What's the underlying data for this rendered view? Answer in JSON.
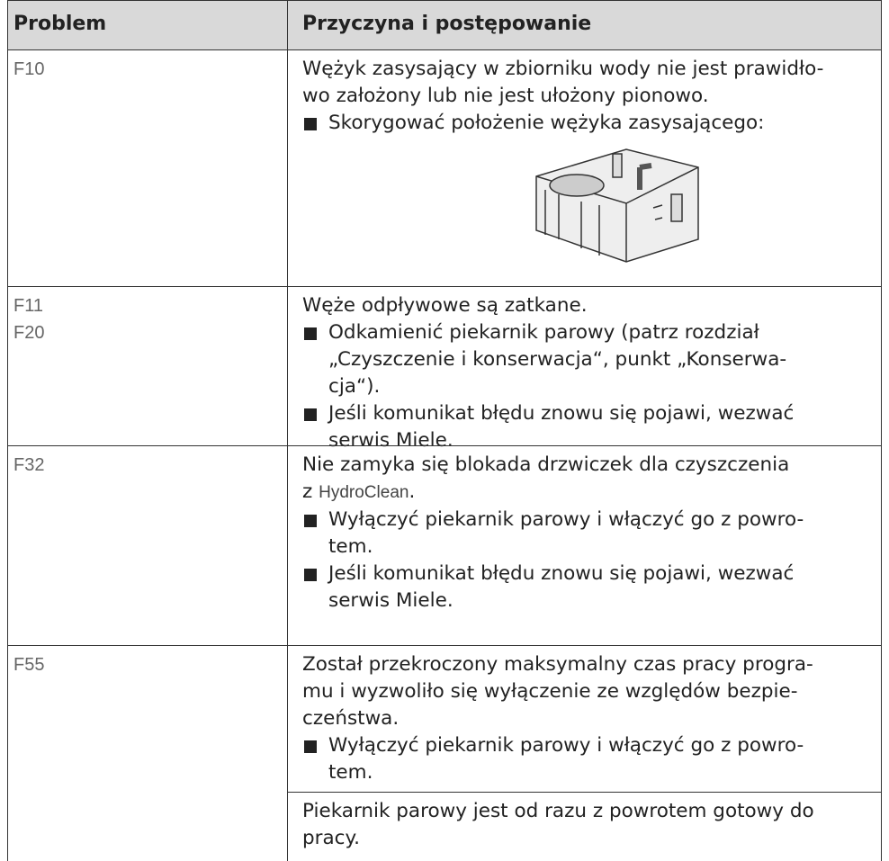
{
  "table": {
    "header": [
      "Problem",
      "Przyczyna i postępowanie"
    ],
    "rows": [
      {
        "codes": [
          "F10"
        ],
        "blocks": [
          [
            "Wężyk zasysający w zbiorniku wody nie jest prawidło-",
            "wo założony lub nie jest ułożony pionowo."
          ],
          [
            "Skorygować położenie wężyka zasysającego:"
          ]
        ]
      },
      {
        "codes": [
          "F11",
          "F20"
        ],
        "blocks": [
          [
            "Węże odpływowe są zatkane."
          ],
          [
            "Odkamienić piekarnik parowy (patrz rozdział",
            "„Czyszczenie i konserwacja“, punkt „Konserwa-",
            "cja“)."
          ],
          [
            "Jeśli komunikat błędu znowu się pojawi, wezwać",
            "serwis Miele."
          ]
        ]
      },
      {
        "codes": [
          "F32"
        ],
        "blocks": [
          [
            "Nie zamyka się blokada drzwiczek dla czyszczenia",
            [
              "z ",
              "HydroClean",
              "."
            ]
          ],
          [
            "Wyłączyć piekarnik parowy i włączyć go z powro-",
            "tem."
          ],
          [
            "Jeśli komunikat błędu znowu się pojawi, wezwać",
            "serwis Miele."
          ]
        ]
      },
      {
        "codes": [
          "F55"
        ],
        "blocks": [
          [
            "Został przekroczony maksymalny czas pracy progra-",
            "mu i wyzwoliło się wyłączenie ze względów bezpie-",
            "czeństwa."
          ],
          [
            "Wyłączyć piekarnik parowy i włączyć go z powro-",
            "tem."
          ],
          [
            "Piekarnik parowy jest od razu z powrotem gotowy do",
            "pracy."
          ]
        ]
      }
    ]
  }
}
